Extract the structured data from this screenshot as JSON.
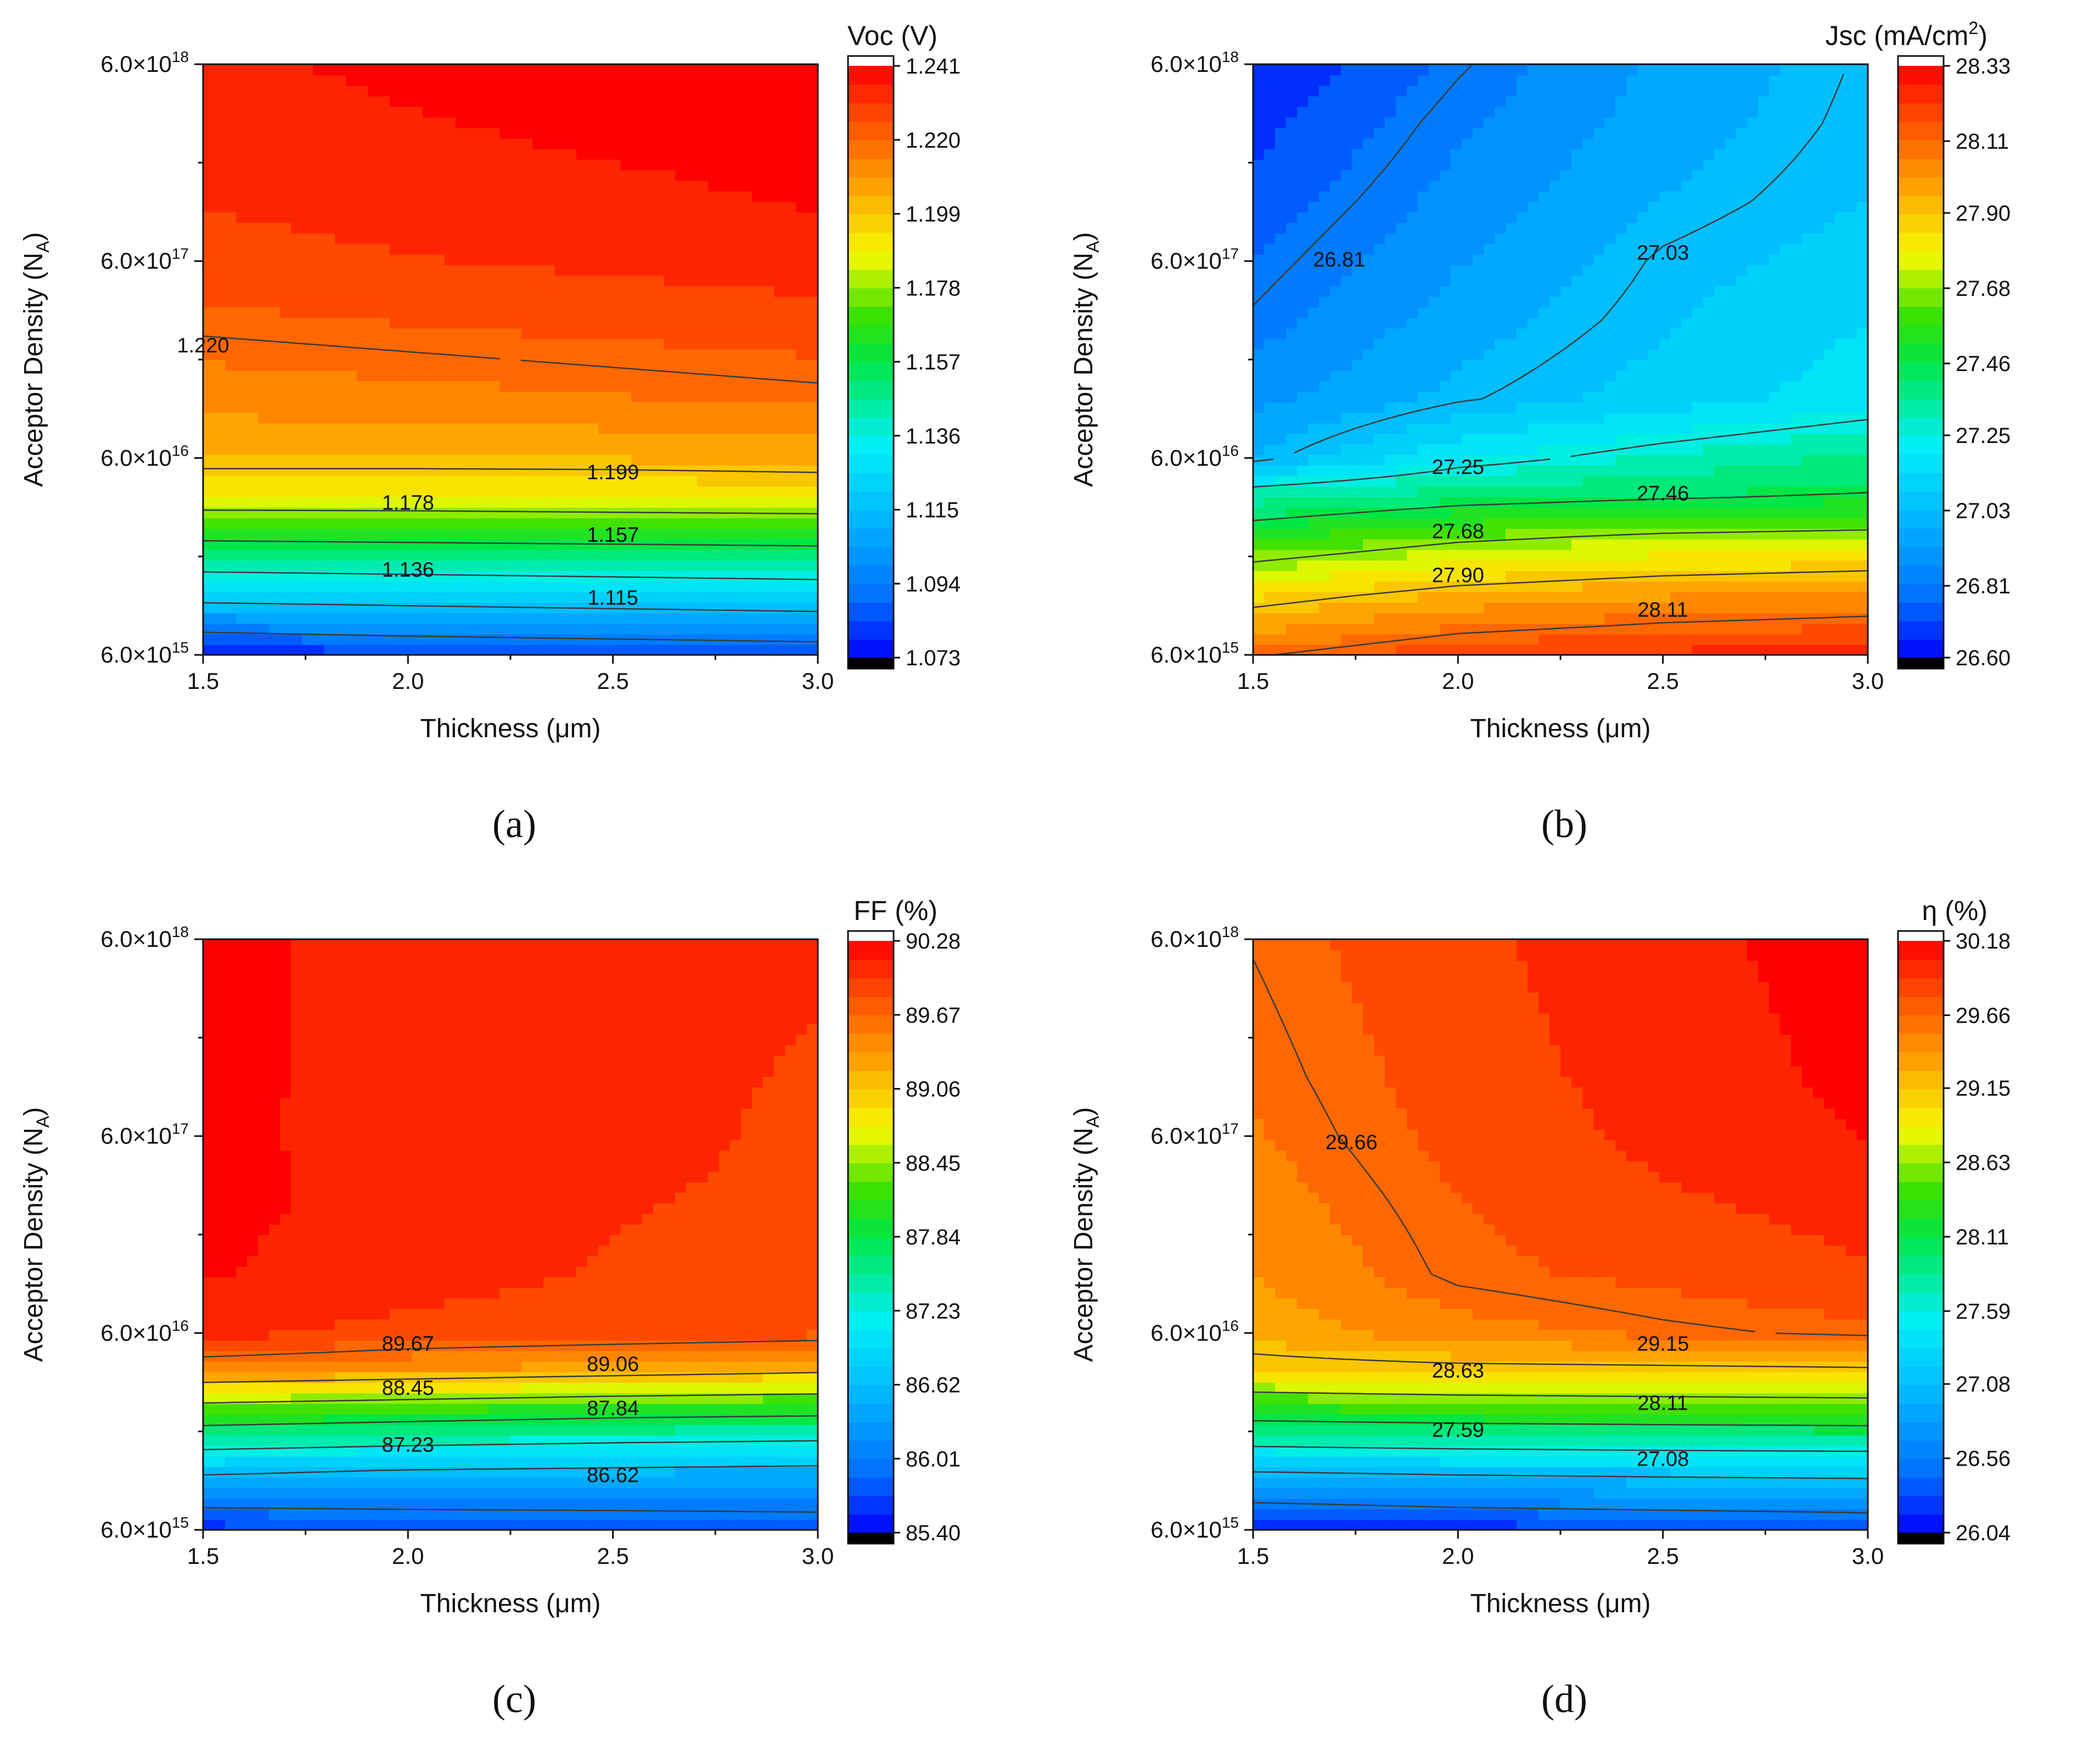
{
  "figure": {
    "panels": [
      {
        "label": "(a)"
      },
      {
        "label": "(b)"
      },
      {
        "label": "(c)"
      },
      {
        "label": "(d)"
      }
    ]
  },
  "chart_data": [
    {
      "type": "heatmap",
      "panel": "(a)",
      "title": "Voc (V)",
      "xlabel": "Thickness (μm)",
      "ylabel": "Acceptor Density (N_A)",
      "x": [
        1.5,
        2.0,
        2.5,
        3.0
      ],
      "xlim": [
        1.5,
        3.0
      ],
      "xticks": [
        1.5,
        2.0,
        2.5,
        3.0
      ],
      "xtick_labels": [
        "1.5",
        "2.0",
        "2.5",
        "3.0"
      ],
      "y_scale": "log",
      "ylim": [
        6000000000000000.0,
        6e+18
      ],
      "yticks": [
        6000000000000000.0,
        6e+16,
        6e+17,
        6e+18
      ],
      "ytick_labels": [
        {
          "base": "6.0×10",
          "exp": "15"
        },
        {
          "base": "6.0×10",
          "exp": "16"
        },
        {
          "base": "6.0×10",
          "exp": "17"
        },
        {
          "base": "6.0×10",
          "exp": "18"
        }
      ],
      "colorbar": {
        "min": 1.073,
        "max": 1.241,
        "tick_values": [
          1.073,
          1.094,
          1.115,
          1.136,
          1.157,
          1.178,
          1.199,
          1.22,
          1.241
        ],
        "tick_labels": [
          "1.073",
          "1.094",
          "1.115",
          "1.136",
          "1.157",
          "1.178",
          "1.199",
          "1.220",
          "1.241"
        ]
      },
      "y_samples": [
        6000000000000000.0,
        1.2e+16,
        2.4e+16,
        4e+16,
        6e+16,
        1.2e+17,
        3e+17,
        6e+17,
        1.2e+18,
        3e+18,
        6e+18
      ],
      "z": [
        [
          1.078,
          1.081,
          1.083,
          1.085
        ],
        [
          1.12,
          1.122,
          1.124,
          1.126
        ],
        [
          1.16,
          1.161,
          1.162,
          1.163
        ],
        [
          1.19,
          1.19,
          1.191,
          1.192
        ],
        [
          1.203,
          1.203,
          1.203,
          1.204
        ],
        [
          1.212,
          1.214,
          1.216,
          1.218
        ],
        [
          1.222,
          1.224,
          1.226,
          1.228
        ],
        [
          1.227,
          1.23,
          1.232,
          1.234
        ],
        [
          1.231,
          1.234,
          1.236,
          1.238
        ],
        [
          1.234,
          1.237,
          1.239,
          1.24
        ],
        [
          1.236,
          1.239,
          1.24,
          1.241
        ]
      ],
      "contour_levels": [
        1.094,
        1.115,
        1.136,
        1.157,
        1.178,
        1.199,
        1.22
      ],
      "contour_labels": [
        {
          "text": "1.220",
          "x": 1.5,
          "y": 2.2e+17
        },
        {
          "text": "1.199",
          "x": 2.5,
          "y": 5e+16
        },
        {
          "text": "1.178",
          "x": 2.0,
          "y": 3.5e+16
        },
        {
          "text": "1.157",
          "x": 2.5,
          "y": 2.4e+16
        },
        {
          "text": "1.136",
          "x": 2.0,
          "y": 1.6e+16
        },
        {
          "text": "1.115",
          "x": 2.5,
          "y": 1.15e+16
        }
      ]
    },
    {
      "type": "heatmap",
      "panel": "(b)",
      "title": "Jsc (mA/cm2)",
      "title_parts": {
        "main": "Jsc (mA/cm",
        "sup": "2",
        "end": ")"
      },
      "xlabel": "Thickness (μm)",
      "ylabel": "Acceptor Density (N_A)",
      "x": [
        1.5,
        2.0,
        2.5,
        3.0
      ],
      "xlim": [
        1.5,
        3.0
      ],
      "xticks": [
        1.5,
        2.0,
        2.5,
        3.0
      ],
      "xtick_labels": [
        "1.5",
        "2.0",
        "2.5",
        "3.0"
      ],
      "y_scale": "log",
      "ylim": [
        6000000000000000.0,
        6e+18
      ],
      "yticks": [
        6000000000000000.0,
        6e+16,
        6e+17,
        6e+18
      ],
      "ytick_labels": [
        {
          "base": "6.0×10",
          "exp": "15"
        },
        {
          "base": "6.0×10",
          "exp": "16"
        },
        {
          "base": "6.0×10",
          "exp": "17"
        },
        {
          "base": "6.0×10",
          "exp": "18"
        }
      ],
      "colorbar": {
        "min": 26.6,
        "max": 28.33,
        "tick_values": [
          26.6,
          26.81,
          27.03,
          27.25,
          27.46,
          27.68,
          27.9,
          28.11,
          28.33
        ],
        "tick_labels": [
          "26.60",
          "26.81",
          "27.03",
          "27.25",
          "27.46",
          "27.68",
          "27.90",
          "28.11",
          "28.33"
        ]
      },
      "y_samples": [
        6000000000000000.0,
        1.2e+16,
        2.4e+16,
        4e+16,
        6e+16,
        1.2e+17,
        3e+17,
        6e+17,
        1.2e+18,
        3e+18,
        6e+18
      ],
      "z": [
        [
          28.1,
          28.2,
          28.24,
          28.26
        ],
        [
          27.85,
          27.95,
          28.0,
          28.03
        ],
        [
          27.55,
          27.65,
          27.7,
          27.72
        ],
        [
          27.3,
          27.38,
          27.42,
          27.45
        ],
        [
          27.0,
          27.2,
          27.3,
          27.38
        ],
        [
          26.9,
          27.02,
          27.1,
          27.18
        ],
        [
          26.82,
          26.96,
          27.06,
          27.14
        ],
        [
          26.78,
          26.92,
          27.04,
          27.1
        ],
        [
          26.74,
          26.88,
          27.0,
          27.07
        ],
        [
          26.68,
          26.84,
          26.96,
          27.05
        ],
        [
          26.64,
          26.8,
          26.94,
          27.04
        ]
      ],
      "contour_levels": [
        26.81,
        27.03,
        27.25,
        27.46,
        27.68,
        27.9,
        28.11
      ],
      "contour_labels": [
        {
          "text": "26.81",
          "x": 1.71,
          "y": 6e+17
        },
        {
          "text": "27.03",
          "x": 2.5,
          "y": 6.5e+17
        },
        {
          "text": "27.25",
          "x": 2.0,
          "y": 5.3e+16
        },
        {
          "text": "27.46",
          "x": 2.5,
          "y": 3.9e+16
        },
        {
          "text": "27.68",
          "x": 2.0,
          "y": 2.5e+16
        },
        {
          "text": "27.90",
          "x": 2.0,
          "y": 1.5e+16
        },
        {
          "text": "28.11",
          "x": 2.5,
          "y": 1e+16
        }
      ]
    },
    {
      "type": "heatmap",
      "panel": "(c)",
      "title": "FF (%)",
      "xlabel": "Thickness (μm)",
      "ylabel": "Acceptor Density (N_A)",
      "x": [
        1.5,
        2.0,
        2.5,
        3.0
      ],
      "xlim": [
        1.5,
        3.0
      ],
      "xticks": [
        1.5,
        2.0,
        2.5,
        3.0
      ],
      "xtick_labels": [
        "1.5",
        "2.0",
        "2.5",
        "3.0"
      ],
      "y_scale": "log",
      "ylim": [
        6000000000000000.0,
        6e+18
      ],
      "yticks": [
        6000000000000000.0,
        6e+16,
        6e+17,
        6e+18
      ],
      "ytick_labels": [
        {
          "base": "6.0×10",
          "exp": "15"
        },
        {
          "base": "6.0×10",
          "exp": "16"
        },
        {
          "base": "6.0×10",
          "exp": "17"
        },
        {
          "base": "6.0×10",
          "exp": "18"
        }
      ],
      "colorbar": {
        "min": 85.4,
        "max": 90.28,
        "tick_values": [
          85.4,
          86.01,
          86.62,
          87.23,
          87.84,
          88.45,
          89.06,
          89.67,
          90.28
        ],
        "tick_labels": [
          "85.40",
          "86.01",
          "86.62",
          "87.23",
          "87.84",
          "88.45",
          "89.06",
          "89.67",
          "90.28"
        ]
      },
      "y_samples": [
        6000000000000000.0,
        1.2e+16,
        2.4e+16,
        4e+16,
        6e+16,
        1.2e+17,
        3e+17,
        6e+17,
        1.2e+18,
        3e+18,
        6e+18
      ],
      "z": [
        [
          85.6,
          85.7,
          85.75,
          85.8
        ],
        [
          86.7,
          86.6,
          86.55,
          86.5
        ],
        [
          88.2,
          88.1,
          88.0,
          87.95
        ],
        [
          89.5,
          89.4,
          89.3,
          89.2
        ],
        [
          90.05,
          89.9,
          89.85,
          89.8
        ],
        [
          90.2,
          90.08,
          89.95,
          89.88
        ],
        [
          90.22,
          90.13,
          90.0,
          89.92
        ],
        [
          90.2,
          90.14,
          90.06,
          89.92
        ],
        [
          90.2,
          90.15,
          90.05,
          89.95
        ],
        [
          90.2,
          90.15,
          90.08,
          89.98
        ],
        [
          90.2,
          90.15,
          90.1,
          90.0
        ]
      ],
      "contour_levels": [
        86.01,
        86.62,
        87.23,
        87.84,
        88.45,
        89.06,
        89.67
      ],
      "contour_labels": [
        {
          "text": "89.67",
          "x": 2.0,
          "y": 5.2e+16
        },
        {
          "text": "89.06",
          "x": 2.5,
          "y": 4.1e+16
        },
        {
          "text": "88.45",
          "x": 2.0,
          "y": 3.1e+16
        },
        {
          "text": "87.84",
          "x": 2.5,
          "y": 2.45e+16
        },
        {
          "text": "87.23",
          "x": 2.0,
          "y": 1.6e+16
        },
        {
          "text": "86.62",
          "x": 2.5,
          "y": 1.12e+16
        }
      ]
    },
    {
      "type": "heatmap",
      "panel": "(d)",
      "title": "η (%)",
      "xlabel": "Thickness (μm)",
      "ylabel": "Acceptor Density (N_A)",
      "x": [
        1.5,
        2.0,
        2.5,
        3.0
      ],
      "xlim": [
        1.5,
        3.0
      ],
      "xticks": [
        1.5,
        2.0,
        2.5,
        3.0
      ],
      "xtick_labels": [
        "1.5",
        "2.0",
        "2.5",
        "3.0"
      ],
      "y_scale": "log",
      "ylim": [
        6000000000000000.0,
        6e+18
      ],
      "yticks": [
        6000000000000000.0,
        6e+16,
        6e+17,
        6e+18
      ],
      "ytick_labels": [
        {
          "base": "6.0×10",
          "exp": "15"
        },
        {
          "base": "6.0×10",
          "exp": "16"
        },
        {
          "base": "6.0×10",
          "exp": "17"
        },
        {
          "base": "6.0×10",
          "exp": "18"
        }
      ],
      "colorbar": {
        "min": 26.04,
        "max": 30.18,
        "tick_values": [
          26.04,
          26.56,
          27.08,
          27.59,
          28.11,
          28.63,
          29.15,
          29.66,
          30.18
        ],
        "tick_labels": [
          "26.04",
          "26.56",
          "27.08",
          "27.59",
          "28.11",
          "28.63",
          "29.15",
          "29.66",
          "30.18"
        ]
      },
      "y_samples": [
        6000000000000000.0,
        1.2e+16,
        2.4e+16,
        4e+16,
        6e+16,
        1.2e+17,
        3e+17,
        6e+17,
        1.2e+18,
        3e+18,
        6e+18
      ],
      "z": [
        [
          26.1,
          26.2,
          26.25,
          26.3
        ],
        [
          27.1,
          27.15,
          27.18,
          27.2
        ],
        [
          28.3,
          28.35,
          28.38,
          28.4
        ],
        [
          29.05,
          29.1,
          29.12,
          29.15
        ],
        [
          29.3,
          29.5,
          29.62,
          29.7
        ],
        [
          29.4,
          29.7,
          29.8,
          29.9
        ],
        [
          29.5,
          29.75,
          29.9,
          30.0
        ],
        [
          29.56,
          29.8,
          29.97,
          30.1
        ],
        [
          29.6,
          29.83,
          30.0,
          30.14
        ],
        [
          29.64,
          29.86,
          30.02,
          30.16
        ],
        [
          29.67,
          29.88,
          30.04,
          30.18
        ]
      ],
      "contour_levels": [
        26.56,
        27.08,
        27.59,
        28.11,
        28.63,
        29.15,
        29.66
      ],
      "contour_labels": [
        {
          "text": "29.66",
          "x": 1.74,
          "y": 5.5e+17
        },
        {
          "text": "29.15",
          "x": 2.5,
          "y": 5.2e+16
        },
        {
          "text": "28.63",
          "x": 2.0,
          "y": 3.8e+16
        },
        {
          "text": "28.11",
          "x": 2.5,
          "y": 2.6e+16
        },
        {
          "text": "27.59",
          "x": 2.0,
          "y": 1.9e+16
        },
        {
          "text": "27.08",
          "x": 2.5,
          "y": 1.35e+16
        }
      ]
    }
  ]
}
